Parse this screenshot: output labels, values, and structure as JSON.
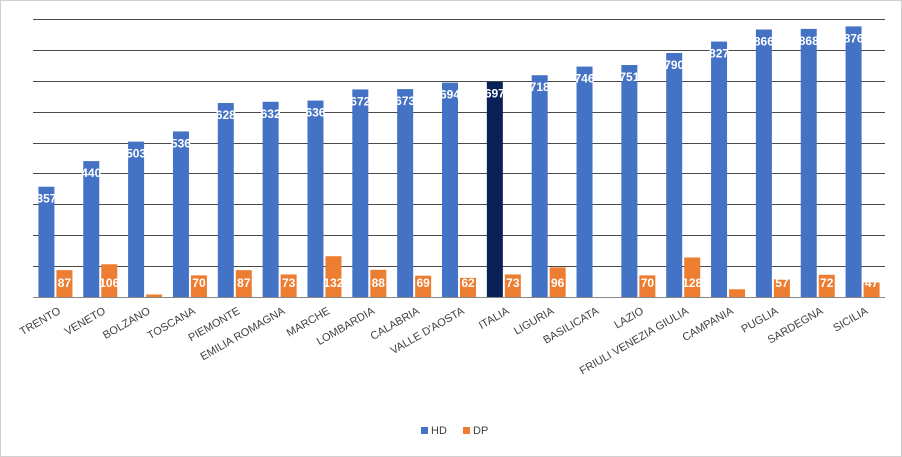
{
  "chart_data": {
    "type": "bar",
    "categories": [
      "TRENTO",
      "VENETO",
      "BOLZANO",
      "TOSCANA",
      "PIEMONTE",
      "EMILIA ROMAGNA",
      "MARCHE",
      "LOMBARDIA",
      "CALABRIA",
      "VALLE D'AOSTA",
      "ITALIA",
      "LIGURIA",
      "BASILICATA",
      "LAZIO",
      "FRIULI VENEZIA GIULIA",
      "CAMPANIA",
      "PUGLIA",
      "SARDEGNA",
      "SICILIA"
    ],
    "series": [
      {
        "name": "HD",
        "values": [
          357,
          440,
          503,
          536,
          628,
          632,
          636,
          672,
          673,
          694,
          697,
          718,
          746,
          751,
          790,
          827,
          866,
          868,
          876
        ]
      },
      {
        "name": "DP",
        "values": [
          87,
          106,
          8,
          70,
          87,
          73,
          132,
          88,
          69,
          62,
          73,
          96,
          0,
          70,
          128,
          25,
          57,
          72,
          47
        ]
      }
    ],
    "highlight_category": "ITALIA",
    "ylim": [
      0,
      900
    ],
    "grid": true,
    "legend_position": "bottom",
    "colors": {
      "HD": "#4472C4",
      "DP": "#ED7D31",
      "highlight": "#0A2157",
      "grid": "#4a4a4a"
    }
  }
}
